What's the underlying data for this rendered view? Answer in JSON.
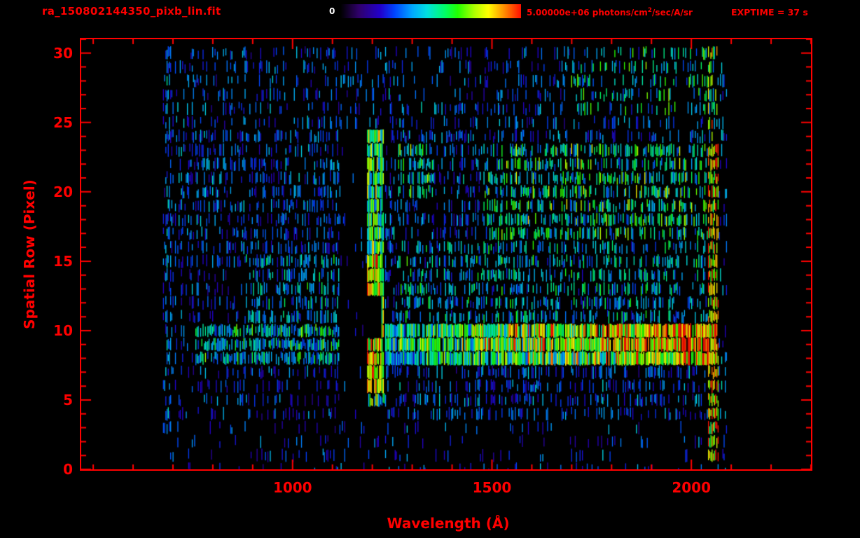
{
  "colors": {
    "accent_red": "#ff0000",
    "background": "#000000",
    "label_white": "#ffffff"
  },
  "header": {
    "title": "ra_150802144350_pixb_lin.fit",
    "exptime": "EXPTIME = 37 s",
    "colorbar": {
      "min_label": "0",
      "max_prefix": "5.00000e+06 photons/cm",
      "max_sup": "2",
      "max_suffix": "/sec/A/sr"
    }
  },
  "chart_data": {
    "type": "heatmap",
    "title": "ra_150802144350_pixb_lin.fit",
    "xlabel": "Wavelength (Å)",
    "ylabel": "Spatial Row (Pixel)",
    "xlim": [
      470,
      2300
    ],
    "ylim": [
      0,
      31
    ],
    "x_major_ticks": [
      1000,
      1500,
      2000
    ],
    "x_minor_step": 100,
    "y_major_ticks": [
      0,
      5,
      10,
      15,
      20,
      25,
      30
    ],
    "y_minor_step": 1,
    "grid": false,
    "legend": "none",
    "colorbar": {
      "min": 0,
      "max": 5000000,
      "units": "photons/cm^2/sec/A/sr",
      "orientation": "horizontal-top"
    },
    "exposure_time_s": 37,
    "data_extent": {
      "lam_min": 675,
      "lam_max": 2090,
      "row_min": 0,
      "row_max": 30
    },
    "n_cols": 470,
    "seed": 1337,
    "colormap_stops": [
      {
        "v": 0.0,
        "color": "#000000"
      },
      {
        "v": 0.1,
        "color": "#30006a"
      },
      {
        "v": 0.22,
        "color": "#2200cc"
      },
      {
        "v": 0.3,
        "color": "#0044ff"
      },
      {
        "v": 0.4,
        "color": "#00aaff"
      },
      {
        "v": 0.48,
        "color": "#00e0e0"
      },
      {
        "v": 0.58,
        "color": "#00ff66"
      },
      {
        "v": 0.65,
        "color": "#22ff00"
      },
      {
        "v": 0.74,
        "color": "#aaff00"
      },
      {
        "v": 0.82,
        "color": "#ffff00"
      },
      {
        "v": 0.9,
        "color": "#ff9900"
      },
      {
        "v": 1.0,
        "color": "#ff1100"
      }
    ],
    "regions": [
      {
        "name": "left-edge-column",
        "lam": [
          672,
          697
        ],
        "row": [
          3,
          30.8
        ],
        "d": 0.5,
        "i": 0.35
      },
      {
        "name": "upper-left-field",
        "lam": [
          697,
          1118
        ],
        "row": [
          15,
          24.2
        ],
        "d": 0.38,
        "i": 0.33
      },
      {
        "name": "lower-left-field",
        "lam": [
          697,
          1118
        ],
        "row": [
          3.2,
          15
        ],
        "d": 0.2,
        "i": 0.3
      },
      {
        "name": "left-center-cyan",
        "lam": [
          880,
          1118
        ],
        "row": [
          11,
          16
        ],
        "d": 0.45,
        "i": 0.42
      },
      {
        "name": "top-sparse",
        "lam": [
          672,
          2092
        ],
        "row": [
          24.2,
          30.8
        ],
        "d": 0.2,
        "i": 0.32
      },
      {
        "name": "bottom-sparse",
        "lam": [
          672,
          2092
        ],
        "row": [
          0,
          3.2
        ],
        "d": 0.09,
        "i": 0.3
      },
      {
        "name": "left-row-band",
        "lam": [
          755,
          1118
        ],
        "row": [
          7.8,
          10.3
        ],
        "d": 0.75,
        "i": 0.48
      },
      {
        "name": "pre-lya-dark",
        "lam": [
          1118,
          1186
        ],
        "row": [
          3.2,
          24.2
        ],
        "d": 0.05,
        "i": 0.3,
        "mode": "set"
      },
      {
        "name": "right-base-field",
        "lam": [
          1232,
          2062
        ],
        "row": [
          3.2,
          24.5
        ],
        "d": 0.33,
        "i": 0.33
      },
      {
        "name": "mid-right-green",
        "lam": [
          1480,
          2058
        ],
        "row": [
          16.5,
          23.6
        ],
        "d": 0.52,
        "i": 0.54
      },
      {
        "name": "green-clump",
        "lam": [
          1265,
          1355
        ],
        "row": [
          19.5,
          23.2
        ],
        "d": 0.6,
        "i": 0.5
      },
      {
        "name": "center-green",
        "lam": [
          1255,
          2058
        ],
        "row": [
          10.8,
          16.5
        ],
        "d": 0.42,
        "i": 0.44
      },
      {
        "name": "row-band-main",
        "lam": [
          1232,
          2062
        ],
        "row": [
          7.9,
          10.9
        ],
        "d": 0.97,
        "i": 0.55,
        "ramp": {
          "lam": [
            1240,
            2060
          ],
          "i": [
            0.52,
            1.02
          ]
        },
        "gauss": {
          "c": 9.4,
          "s": 1.2,
          "floor": 0.72
        }
      },
      {
        "name": "lya-stripe-green",
        "lam": [
          1186,
          1230
        ],
        "row": [
          16,
          24.2
        ],
        "d": 0.95,
        "i": 0.6
      },
      {
        "name": "lya-stripe-bright",
        "lam": [
          1186,
          1228
        ],
        "row": [
          5.2,
          16
        ],
        "d": 1.0,
        "i": 0.82
      },
      {
        "name": "lya-blob-bottom",
        "lam": [
          1190,
          1232
        ],
        "row": [
          4.2,
          5.2
        ],
        "d": 0.85,
        "i": 0.58
      },
      {
        "name": "lya-gap",
        "lam": [
          1184,
          1224
        ],
        "row": [
          9.8,
          12.1
        ],
        "d": 0.0,
        "i": 0.0,
        "mode": "set"
      },
      {
        "name": "red-edge",
        "lam": [
          2042,
          2068
        ],
        "row": [
          0.4,
          24
        ],
        "d": 0.85,
        "i": 0.9
      },
      {
        "name": "red-edge-top",
        "lam": [
          2042,
          2066
        ],
        "row": [
          24,
          30.8
        ],
        "d": 0.45,
        "i": 0.68
      },
      {
        "name": "far-right-sparse",
        "lam": [
          2068,
          2094
        ],
        "row": [
          0,
          30.8
        ],
        "d": 0.22,
        "i": 0.34
      },
      {
        "name": "top-right-green",
        "lam": [
          1700,
          2060
        ],
        "row": [
          26,
          30.8
        ],
        "d": 0.28,
        "i": 0.5
      }
    ],
    "annotations": [
      "Bright emission-line column near 1216 A (geocoronal Lyman-alpha) spanning spatial rows ~5-24 with a dark gap at rows ~10-12",
      "Bright target spectrum along spatial rows ~8-11, brightening from green near 1300 A to red near 2050 A",
      "Bright detector-edge column near 2050-2065 A",
      "Sparse blue background counts across rows 3-30 from ~675 A to ~2090 A",
      "Dark column just shortward of the Lyman-alpha stripe (~1120-1185 A)"
    ]
  }
}
